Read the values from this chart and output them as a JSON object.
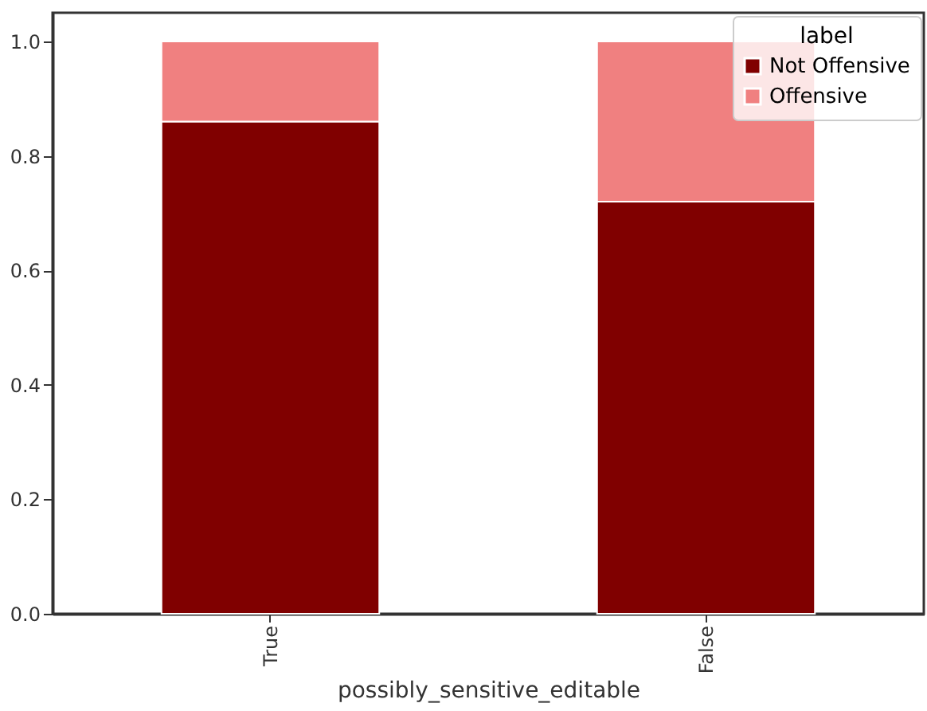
{
  "chart_data": {
    "type": "bar",
    "stacked": true,
    "xlabel": "possibly_sensitive_editable",
    "legend_title": "label",
    "legend": "top right",
    "grid": false,
    "categories": [
      "True",
      "False"
    ],
    "series": [
      {
        "name": "Not Offensive",
        "color": "#800000",
        "values": [
          0.86,
          0.72
        ]
      },
      {
        "name": "Offensive",
        "color": "#f08080",
        "values": [
          0.14,
          0.28
        ]
      }
    ],
    "ylim": [
      0,
      1.05
    ],
    "yticks": [
      {
        "value": 0,
        "label": "0.0"
      },
      {
        "value": 0.2,
        "label": "0.2"
      },
      {
        "value": 0.4,
        "label": "0.4"
      },
      {
        "value": 0.6,
        "label": "0.6"
      },
      {
        "value": 0.8,
        "label": "0.8"
      },
      {
        "value": 1,
        "label": "1.0"
      }
    ]
  }
}
